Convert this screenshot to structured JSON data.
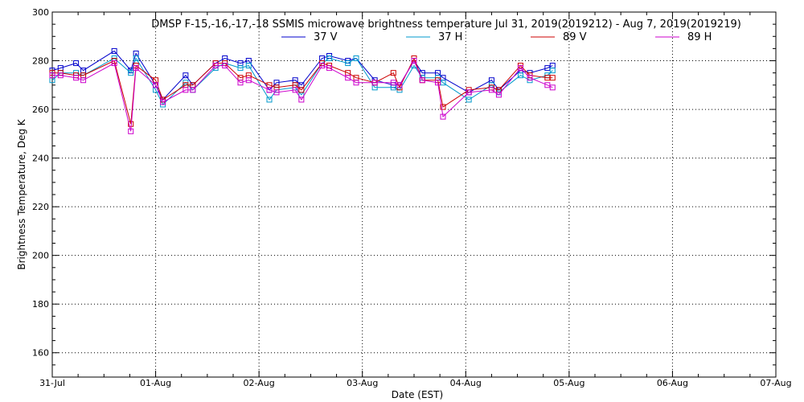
{
  "chart_data": {
    "type": "line",
    "title": "DMSP F-15,-16,-17,-18 SSMIS microwave brightness temperature Jul 31, 2019(2019212) - Aug  7, 2019(2019219)",
    "xlabel": "Date (EST)",
    "ylabel": "Brightness Temperature, Deg K",
    "xlim": [
      "31-Jul",
      "07-Aug"
    ],
    "ylim": [
      150,
      300
    ],
    "x_ticks": [
      "31-Jul",
      "01-Aug",
      "02-Aug",
      "03-Aug",
      "04-Aug",
      "05-Aug",
      "06-Aug",
      "07-Aug"
    ],
    "y_ticks": [
      160,
      180,
      200,
      220,
      240,
      260,
      280,
      300
    ],
    "grid": true,
    "legend_position": "top",
    "series": [
      {
        "name": "37 V",
        "color": "#0000cc",
        "x": [
          0.0,
          0.08,
          0.23,
          0.3,
          0.6,
          0.76,
          0.81,
          1.0,
          1.07,
          1.29,
          1.36,
          1.58,
          1.67,
          1.82,
          1.9,
          2.1,
          2.17,
          2.35,
          2.41,
          2.61,
          2.68,
          2.86,
          2.94,
          3.12,
          3.3,
          3.36,
          3.5,
          3.58,
          3.73,
          3.78,
          4.03,
          4.25,
          4.32,
          4.53,
          4.62,
          4.79,
          4.84
        ],
        "y": [
          276,
          277,
          279,
          276,
          284,
          276,
          283,
          270,
          264,
          274,
          270,
          279,
          281,
          279,
          280,
          268,
          271,
          272,
          270,
          281,
          282,
          280,
          281,
          272,
          270,
          270,
          280,
          275,
          275,
          273,
          267,
          272,
          268,
          276,
          275,
          277,
          278
        ]
      },
      {
        "name": "37 H",
        "color": "#0099cc",
        "x": [
          0.0,
          0.08,
          0.23,
          0.3,
          0.6,
          0.76,
          0.81,
          1.0,
          1.07,
          1.29,
          1.36,
          1.58,
          1.67,
          1.82,
          1.9,
          2.1,
          2.17,
          2.35,
          2.41,
          2.61,
          2.68,
          2.86,
          2.94,
          3.12,
          3.3,
          3.36,
          3.5,
          3.58,
          3.73,
          3.78,
          4.03,
          4.25,
          4.32,
          4.53,
          4.62,
          4.79,
          4.84
        ],
        "y": [
          272,
          275,
          275,
          274,
          281,
          275,
          281,
          268,
          262,
          271,
          268,
          277,
          279,
          277,
          278,
          264,
          268,
          269,
          266,
          279,
          281,
          279,
          281,
          269,
          269,
          268,
          278,
          273,
          273,
          271,
          264,
          270,
          267,
          274,
          272,
          274,
          276
        ]
      },
      {
        "name": "89 V",
        "color": "#cc0000",
        "x": [
          0.0,
          0.08,
          0.23,
          0.3,
          0.6,
          0.76,
          0.81,
          1.0,
          1.07,
          1.29,
          1.36,
          1.58,
          1.67,
          1.82,
          1.9,
          2.1,
          2.17,
          2.35,
          2.41,
          2.61,
          2.68,
          2.86,
          2.94,
          3.12,
          3.3,
          3.36,
          3.5,
          3.58,
          3.73,
          3.78,
          4.03,
          4.25,
          4.32,
          4.53,
          4.62,
          4.79,
          4.84
        ],
        "y": [
          275,
          275,
          274,
          274,
          280,
          254,
          278,
          272,
          264,
          270,
          270,
          279,
          279,
          273,
          274,
          270,
          269,
          270,
          268,
          279,
          278,
          275,
          273,
          271,
          275,
          269,
          281,
          272,
          272,
          261,
          268,
          269,
          268,
          278,
          274,
          273,
          273
        ]
      },
      {
        "name": "89 H",
        "color": "#cc00cc",
        "x": [
          0.0,
          0.08,
          0.23,
          0.3,
          0.6,
          0.76,
          0.81,
          1.0,
          1.07,
          1.29,
          1.36,
          1.58,
          1.67,
          1.82,
          1.9,
          2.1,
          2.17,
          2.35,
          2.41,
          2.61,
          2.68,
          2.86,
          2.94,
          3.12,
          3.3,
          3.36,
          3.5,
          3.58,
          3.73,
          3.78,
          4.03,
          4.25,
          4.32,
          4.53,
          4.62,
          4.79,
          4.84
        ],
        "y": [
          274,
          274,
          273,
          272,
          279,
          251,
          277,
          270,
          263,
          268,
          268,
          278,
          278,
          271,
          272,
          268,
          267,
          268,
          264,
          278,
          277,
          273,
          271,
          271,
          271,
          270,
          280,
          272,
          271,
          257,
          267,
          268,
          266,
          277,
          273,
          270,
          269
        ]
      }
    ]
  }
}
